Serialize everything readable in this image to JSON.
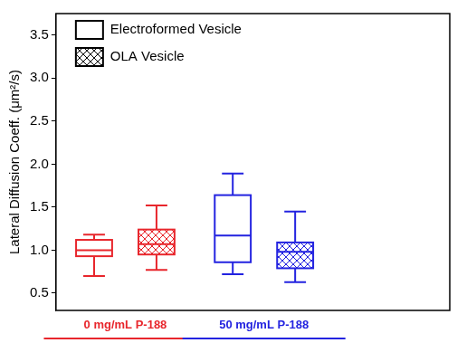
{
  "chart_data": {
    "type": "box",
    "categories": [
      "0 mg/mL P-188",
      "50 mg/mL P-188"
    ],
    "colors": [
      "#e8262c",
      "#2323e0"
    ],
    "ylabel": "Lateral Diffusion Coeff. (μm²/s)",
    "ylim": [
      0.3,
      3.75
    ],
    "yticks": [
      0.5,
      {
        "value": 1,
        "label": "1.0"
      },
      1.5,
      {
        "value": 2,
        "label": "2.0"
      },
      2.5,
      {
        "value": 3,
        "label": "3.0"
      },
      3.5
    ],
    "grid": false,
    "legend": "upper left",
    "series": [
      {
        "name": "Electroformed Vesicle",
        "marker": "open",
        "values": [
          {
            "min": 0.7,
            "q1": 0.93,
            "median": 1.0,
            "q3": 1.12,
            "max": 1.18
          },
          {
            "min": 0.72,
            "q1": 0.86,
            "median": 1.17,
            "q3": 1.64,
            "max": 1.89
          }
        ]
      },
      {
        "name": "OLA Vesicle",
        "marker": "hatched",
        "values": [
          {
            "min": 0.77,
            "q1": 0.95,
            "median": 1.07,
            "q3": 1.24,
            "max": 1.52
          },
          {
            "min": 0.63,
            "q1": 0.79,
            "median": 0.98,
            "q3": 1.09,
            "max": 1.45
          }
        ]
      }
    ]
  }
}
